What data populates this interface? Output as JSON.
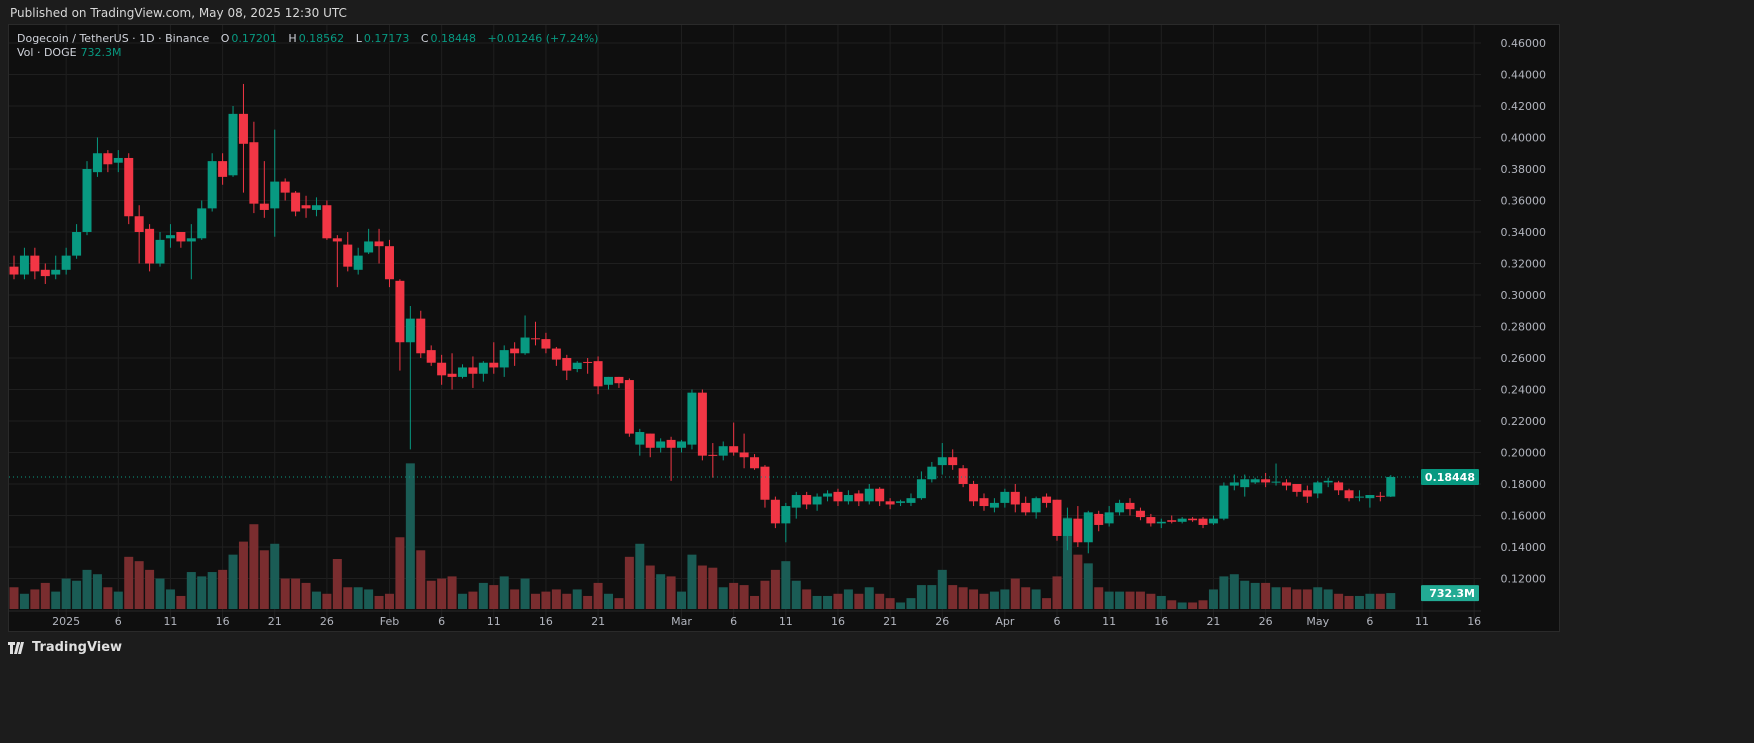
{
  "published": "Published on TradingView.com, May 08, 2025 12:30 UTC",
  "legend": {
    "symbol": "Dogecoin / TetherUS · 1D · Binance",
    "o_label": "O",
    "o": "0.17201",
    "h_label": "H",
    "h": "0.18562",
    "l_label": "L",
    "l": "0.17173",
    "c_label": "C",
    "c": "0.18448",
    "change": "+0.01246 (+7.24%)",
    "vol_label": "Vol · DOGE",
    "vol": "732.3M"
  },
  "footer": {
    "brand": "TradingView"
  },
  "colors": {
    "up": "#089981",
    "down": "#f23645",
    "vol_up": "#1a5c55",
    "vol_down": "#7a2d2f"
  },
  "chart_data": {
    "type": "candlestick",
    "title": "Dogecoin / TetherUS · 1D · Binance",
    "ylim": [
      0.11,
      0.47
    ],
    "y_ticks": [
      "0.12000",
      "0.14000",
      "0.16000",
      "0.18000",
      "0.20000",
      "0.22000",
      "0.24000",
      "0.26000",
      "0.28000",
      "0.30000",
      "0.32000",
      "0.34000",
      "0.36000",
      "0.38000",
      "0.40000",
      "0.42000",
      "0.44000",
      "0.46000"
    ],
    "last_price_label": "0.18448",
    "last_volume_label": "732.3M",
    "first_date": "2024-12-27",
    "x_ticks": [
      {
        "label": "2025",
        "day": 5
      },
      {
        "label": "6",
        "day": 10
      },
      {
        "label": "11",
        "day": 15
      },
      {
        "label": "16",
        "day": 20
      },
      {
        "label": "21",
        "day": 25
      },
      {
        "label": "26",
        "day": 30
      },
      {
        "label": "Feb",
        "day": 36
      },
      {
        "label": "6",
        "day": 41
      },
      {
        "label": "11",
        "day": 46
      },
      {
        "label": "16",
        "day": 51
      },
      {
        "label": "21",
        "day": 56
      },
      {
        "label": "Mar",
        "day": 64
      },
      {
        "label": "6",
        "day": 69
      },
      {
        "label": "11",
        "day": 74
      },
      {
        "label": "16",
        "day": 79
      },
      {
        "label": "21",
        "day": 84
      },
      {
        "label": "26",
        "day": 89
      },
      {
        "label": "Apr",
        "day": 95
      },
      {
        "label": "6",
        "day": 100
      },
      {
        "label": "11",
        "day": 105
      },
      {
        "label": "16",
        "day": 110
      },
      {
        "label": "21",
        "day": 115
      },
      {
        "label": "26",
        "day": 120
      },
      {
        "label": "May",
        "day": 125
      },
      {
        "label": "6",
        "day": 130
      },
      {
        "label": "11",
        "day": 135
      },
      {
        "label": "16",
        "day": 140
      }
    ],
    "ohlc": [
      [
        0.318,
        0.325,
        0.31,
        0.313
      ],
      [
        0.313,
        0.33,
        0.31,
        0.325
      ],
      [
        0.325,
        0.33,
        0.31,
        0.315
      ],
      [
        0.316,
        0.32,
        0.307,
        0.312
      ],
      [
        0.313,
        0.325,
        0.31,
        0.316
      ],
      [
        0.316,
        0.33,
        0.313,
        0.325
      ],
      [
        0.325,
        0.345,
        0.323,
        0.34
      ],
      [
        0.34,
        0.385,
        0.338,
        0.38
      ],
      [
        0.378,
        0.4,
        0.375,
        0.39
      ],
      [
        0.39,
        0.392,
        0.378,
        0.383
      ],
      [
        0.384,
        0.392,
        0.378,
        0.387
      ],
      [
        0.387,
        0.39,
        0.345,
        0.35
      ],
      [
        0.35,
        0.357,
        0.32,
        0.34
      ],
      [
        0.342,
        0.345,
        0.315,
        0.32
      ],
      [
        0.32,
        0.34,
        0.318,
        0.335
      ],
      [
        0.336,
        0.345,
        0.33,
        0.338
      ],
      [
        0.34,
        0.34,
        0.33,
        0.334
      ],
      [
        0.334,
        0.345,
        0.31,
        0.336
      ],
      [
        0.336,
        0.36,
        0.335,
        0.355
      ],
      [
        0.355,
        0.39,
        0.353,
        0.385
      ],
      [
        0.385,
        0.39,
        0.37,
        0.375
      ],
      [
        0.376,
        0.42,
        0.375,
        0.415
      ],
      [
        0.415,
        0.434,
        0.365,
        0.396
      ],
      [
        0.397,
        0.41,
        0.352,
        0.358
      ],
      [
        0.358,
        0.385,
        0.349,
        0.354
      ],
      [
        0.355,
        0.405,
        0.337,
        0.372
      ],
      [
        0.372,
        0.374,
        0.36,
        0.365
      ],
      [
        0.365,
        0.366,
        0.35,
        0.353
      ],
      [
        0.357,
        0.363,
        0.349,
        0.355
      ],
      [
        0.354,
        0.362,
        0.35,
        0.357
      ],
      [
        0.357,
        0.36,
        0.335,
        0.336
      ],
      [
        0.336,
        0.338,
        0.305,
        0.334
      ],
      [
        0.332,
        0.34,
        0.315,
        0.318
      ],
      [
        0.316,
        0.33,
        0.313,
        0.325
      ],
      [
        0.327,
        0.342,
        0.326,
        0.334
      ],
      [
        0.334,
        0.342,
        0.32,
        0.331
      ],
      [
        0.331,
        0.335,
        0.305,
        0.31
      ],
      [
        0.309,
        0.31,
        0.252,
        0.27
      ],
      [
        0.27,
        0.293,
        0.202,
        0.285
      ],
      [
        0.285,
        0.29,
        0.26,
        0.263
      ],
      [
        0.265,
        0.268,
        0.255,
        0.257
      ],
      [
        0.257,
        0.262,
        0.243,
        0.249
      ],
      [
        0.25,
        0.263,
        0.24,
        0.248
      ],
      [
        0.248,
        0.256,
        0.247,
        0.254
      ],
      [
        0.254,
        0.261,
        0.241,
        0.25
      ],
      [
        0.25,
        0.258,
        0.245,
        0.257
      ],
      [
        0.257,
        0.27,
        0.25,
        0.254
      ],
      [
        0.254,
        0.268,
        0.248,
        0.265
      ],
      [
        0.266,
        0.27,
        0.255,
        0.263
      ],
      [
        0.263,
        0.287,
        0.262,
        0.273
      ],
      [
        0.2725,
        0.283,
        0.268,
        0.272
      ],
      [
        0.272,
        0.276,
        0.263,
        0.266
      ],
      [
        0.266,
        0.267,
        0.255,
        0.259
      ],
      [
        0.26,
        0.262,
        0.246,
        0.252
      ],
      [
        0.253,
        0.258,
        0.251,
        0.257
      ],
      [
        0.2575,
        0.26,
        0.25,
        0.257
      ],
      [
        0.258,
        0.261,
        0.237,
        0.242
      ],
      [
        0.243,
        0.248,
        0.24,
        0.248
      ],
      [
        0.248,
        0.248,
        0.241,
        0.244
      ],
      [
        0.246,
        0.247,
        0.21,
        0.212
      ],
      [
        0.205,
        0.215,
        0.198,
        0.213
      ],
      [
        0.212,
        0.212,
        0.197,
        0.203
      ],
      [
        0.203,
        0.209,
        0.2,
        0.207
      ],
      [
        0.208,
        0.21,
        0.182,
        0.203
      ],
      [
        0.203,
        0.208,
        0.2,
        0.207
      ],
      [
        0.205,
        0.24,
        0.202,
        0.238
      ],
      [
        0.238,
        0.24,
        0.195,
        0.198
      ],
      [
        0.1985,
        0.206,
        0.184,
        0.198
      ],
      [
        0.198,
        0.207,
        0.195,
        0.204
      ],
      [
        0.204,
        0.219,
        0.198,
        0.2
      ],
      [
        0.2,
        0.212,
        0.19,
        0.197
      ],
      [
        0.197,
        0.199,
        0.189,
        0.19
      ],
      [
        0.191,
        0.192,
        0.165,
        0.17
      ],
      [
        0.17,
        0.172,
        0.152,
        0.155
      ],
      [
        0.155,
        0.168,
        0.143,
        0.166
      ],
      [
        0.165,
        0.175,
        0.158,
        0.173
      ],
      [
        0.173,
        0.175,
        0.164,
        0.167
      ],
      [
        0.167,
        0.174,
        0.163,
        0.172
      ],
      [
        0.172,
        0.176,
        0.169,
        0.174
      ],
      [
        0.175,
        0.177,
        0.166,
        0.169
      ],
      [
        0.169,
        0.176,
        0.167,
        0.173
      ],
      [
        0.174,
        0.176,
        0.166,
        0.169
      ],
      [
        0.169,
        0.18,
        0.167,
        0.177
      ],
      [
        0.177,
        0.178,
        0.166,
        0.169
      ],
      [
        0.169,
        0.171,
        0.164,
        0.167
      ],
      [
        0.168,
        0.17,
        0.166,
        0.169
      ],
      [
        0.168,
        0.174,
        0.166,
        0.171
      ],
      [
        0.171,
        0.188,
        0.17,
        0.183
      ],
      [
        0.183,
        0.194,
        0.181,
        0.191
      ],
      [
        0.192,
        0.206,
        0.186,
        0.197
      ],
      [
        0.197,
        0.202,
        0.189,
        0.192
      ],
      [
        0.19,
        0.192,
        0.178,
        0.18
      ],
      [
        0.18,
        0.182,
        0.166,
        0.169
      ],
      [
        0.171,
        0.174,
        0.163,
        0.166
      ],
      [
        0.165,
        0.171,
        0.162,
        0.168
      ],
      [
        0.168,
        0.177,
        0.165,
        0.175
      ],
      [
        0.175,
        0.18,
        0.162,
        0.167
      ],
      [
        0.168,
        0.172,
        0.16,
        0.162
      ],
      [
        0.162,
        0.172,
        0.158,
        0.171
      ],
      [
        0.172,
        0.174,
        0.165,
        0.168
      ],
      [
        0.17,
        0.17,
        0.144,
        0.147
      ],
      [
        0.147,
        0.165,
        0.138,
        0.158
      ],
      [
        0.158,
        0.166,
        0.14,
        0.143
      ],
      [
        0.143,
        0.163,
        0.136,
        0.162
      ],
      [
        0.161,
        0.163,
        0.15,
        0.154
      ],
      [
        0.155,
        0.166,
        0.153,
        0.162
      ],
      [
        0.162,
        0.17,
        0.16,
        0.168
      ],
      [
        0.168,
        0.171,
        0.16,
        0.164
      ],
      [
        0.163,
        0.165,
        0.157,
        0.159
      ],
      [
        0.159,
        0.161,
        0.153,
        0.155
      ],
      [
        0.155,
        0.158,
        0.152,
        0.156
      ],
      [
        0.157,
        0.16,
        0.155,
        0.156
      ],
      [
        0.156,
        0.159,
        0.155,
        0.158
      ],
      [
        0.158,
        0.159,
        0.156,
        0.157
      ],
      [
        0.158,
        0.159,
        0.152,
        0.154
      ],
      [
        0.155,
        0.16,
        0.154,
        0.158
      ],
      [
        0.158,
        0.181,
        0.157,
        0.179
      ],
      [
        0.179,
        0.186,
        0.176,
        0.181
      ],
      [
        0.178,
        0.186,
        0.172,
        0.183
      ],
      [
        0.181,
        0.184,
        0.18,
        0.183
      ],
      [
        0.183,
        0.187,
        0.178,
        0.181
      ],
      [
        0.181,
        0.193,
        0.179,
        0.1815
      ],
      [
        0.181,
        0.183,
        0.176,
        0.179
      ],
      [
        0.18,
        0.18,
        0.172,
        0.175
      ],
      [
        0.176,
        0.179,
        0.168,
        0.172
      ],
      [
        0.174,
        0.182,
        0.171,
        0.181
      ],
      [
        0.181,
        0.184,
        0.178,
        0.182
      ],
      [
        0.181,
        0.182,
        0.173,
        0.176
      ],
      [
        0.176,
        0.177,
        0.169,
        0.171
      ],
      [
        0.1715,
        0.176,
        0.169,
        0.172
      ],
      [
        0.171,
        0.173,
        0.165,
        0.173
      ],
      [
        0.1725,
        0.175,
        0.169,
        0.172
      ],
      [
        0.17201,
        0.18562,
        0.17173,
        0.18448
      ]
    ],
    "volume_millions": [
      1000,
      700,
      900,
      1200,
      800,
      1400,
      1300,
      1800,
      1600,
      1000,
      800,
      2400,
      2200,
      1800,
      1400,
      900,
      600,
      1700,
      1500,
      1700,
      1800,
      2500,
      3100,
      3900,
      2700,
      3000,
      1400,
      1400,
      1200,
      800,
      700,
      2300,
      1000,
      1000,
      900,
      600,
      700,
      3300,
      6700,
      2700,
      1300,
      1400,
      1500,
      700,
      800,
      1200,
      1100,
      1500,
      900,
      1400,
      700,
      800,
      900,
      700,
      900,
      600,
      1200,
      700,
      500,
      2400,
      3000,
      2000,
      1600,
      1500,
      800,
      2500,
      2000,
      1900,
      1000,
      1200,
      1100,
      600,
      1300,
      1800,
      2200,
      1300,
      900,
      600,
      600,
      700,
      900,
      700,
      1000,
      700,
      500,
      300,
      500,
      1100,
      1100,
      1800,
      1100,
      1000,
      900,
      700,
      800,
      900,
      1400,
      1000,
      900,
      500,
      1500,
      4200,
      2500,
      2100,
      1000,
      800,
      800,
      800,
      800,
      700,
      600,
      400,
      300,
      300,
      400,
      900,
      1500,
      1600,
      1300,
      1200,
      1200,
      1000,
      1000,
      900,
      900,
      1000,
      900,
      700,
      600,
      600,
      700,
      700,
      732.3
    ]
  }
}
